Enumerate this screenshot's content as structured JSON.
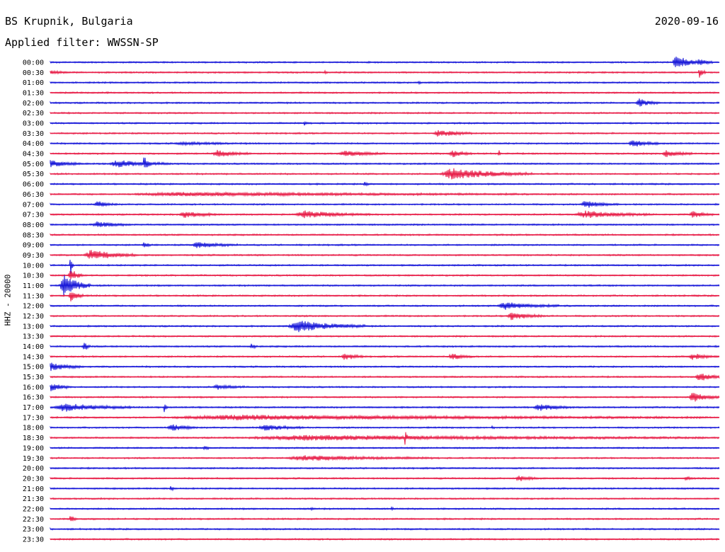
{
  "header": {
    "station": "BS Krupnik, Bulgaria",
    "date": "2020-09-16",
    "filter": "Applied filter: WWSSN-SP"
  },
  "chart_data": {
    "type": "line",
    "title": "BS Krupnik, Bulgaria",
    "subtitle": "Applied filter: WWSSN-SP",
    "ylabel": "HHZ - 20000",
    "trace_colors": [
      "#1a1ad9",
      "#e8204a"
    ],
    "rows": [
      {
        "label": "00:00",
        "events": [
          {
            "t": 0.935,
            "amp": 1.3,
            "dur": 0.035
          },
          {
            "t": 0.97,
            "amp": 0.6,
            "dur": 0.02
          }
        ]
      },
      {
        "label": "00:30",
        "events": [
          {
            "t": 0.0,
            "amp": 0.3,
            "dur": 0.03
          },
          {
            "t": 0.41,
            "amp": 0.4,
            "dur": 0.004
          },
          {
            "t": 0.97,
            "amp": 0.9,
            "dur": 0.01
          }
        ]
      },
      {
        "label": "01:00",
        "events": [
          {
            "t": 0.55,
            "amp": 0.4,
            "dur": 0.004
          }
        ]
      },
      {
        "label": "01:30",
        "events": []
      },
      {
        "label": "02:00",
        "events": [
          {
            "t": 0.88,
            "amp": 0.7,
            "dur": 0.03
          }
        ]
      },
      {
        "label": "02:30",
        "events": []
      },
      {
        "label": "03:00",
        "events": [
          {
            "t": 0.38,
            "amp": 0.3,
            "dur": 0.01
          }
        ]
      },
      {
        "label": "03:30",
        "events": [
          {
            "t": 0.58,
            "amp": 0.6,
            "dur": 0.05
          }
        ]
      },
      {
        "label": "04:00",
        "events": [
          {
            "t": 0.87,
            "amp": 0.6,
            "dur": 0.04
          },
          {
            "t": 0.2,
            "amp": 0.2,
            "dur": 0.1
          }
        ]
      },
      {
        "label": "04:30",
        "events": [
          {
            "t": 0.25,
            "amp": 0.6,
            "dur": 0.05
          },
          {
            "t": 0.44,
            "amp": 0.5,
            "dur": 0.06
          },
          {
            "t": 0.6,
            "amp": 0.6,
            "dur": 0.03
          },
          {
            "t": 0.67,
            "amp": 0.9,
            "dur": 0.004
          },
          {
            "t": 0.92,
            "amp": 0.6,
            "dur": 0.04
          }
        ]
      },
      {
        "label": "05:00",
        "events": [
          {
            "t": 0.0,
            "amp": 0.6,
            "dur": 0.05
          },
          {
            "t": 0.1,
            "amp": 0.6,
            "dur": 0.08
          },
          {
            "t": 0.14,
            "amp": 1.2,
            "dur": 0.01
          }
        ]
      },
      {
        "label": "05:30",
        "events": [
          {
            "t": 0.6,
            "amp": 1.0,
            "dur": 0.12
          }
        ]
      },
      {
        "label": "06:00",
        "events": [
          {
            "t": 0.47,
            "amp": 0.3,
            "dur": 0.01
          }
        ]
      },
      {
        "label": "06:30",
        "events": [
          {
            "t": 0.2,
            "amp": 0.3,
            "dur": 0.5
          }
        ]
      },
      {
        "label": "07:00",
        "events": [
          {
            "t": 0.07,
            "amp": 0.5,
            "dur": 0.03
          },
          {
            "t": 0.8,
            "amp": 0.6,
            "dur": 0.05
          }
        ]
      },
      {
        "label": "07:30",
        "events": [
          {
            "t": 0.2,
            "amp": 0.6,
            "dur": 0.05
          },
          {
            "t": 0.38,
            "amp": 0.6,
            "dur": 0.1
          },
          {
            "t": 0.8,
            "amp": 0.6,
            "dur": 0.1
          },
          {
            "t": 0.96,
            "amp": 0.6,
            "dur": 0.03
          }
        ]
      },
      {
        "label": "08:00",
        "events": [
          {
            "t": 0.07,
            "amp": 0.5,
            "dur": 0.05
          }
        ]
      },
      {
        "label": "08:30",
        "events": []
      },
      {
        "label": "09:00",
        "events": [
          {
            "t": 0.14,
            "amp": 0.7,
            "dur": 0.01
          },
          {
            "t": 0.22,
            "amp": 0.5,
            "dur": 0.06
          }
        ]
      },
      {
        "label": "09:30",
        "events": [
          {
            "t": 0.06,
            "amp": 0.9,
            "dur": 0.07
          }
        ]
      },
      {
        "label": "10:00",
        "events": [
          {
            "t": 0.03,
            "amp": 2.0,
            "dur": 0.005
          }
        ]
      },
      {
        "label": "10:30",
        "events": [
          {
            "t": 0.03,
            "amp": 1.2,
            "dur": 0.02
          }
        ]
      },
      {
        "label": "11:00",
        "events": [
          {
            "t": 0.02,
            "amp": 2.0,
            "dur": 0.04
          }
        ]
      },
      {
        "label": "11:30",
        "events": [
          {
            "t": 0.03,
            "amp": 1.0,
            "dur": 0.02
          }
        ]
      },
      {
        "label": "12:00",
        "events": [
          {
            "t": 0.68,
            "amp": 0.6,
            "dur": 0.08
          }
        ]
      },
      {
        "label": "12:30",
        "events": [
          {
            "t": 0.69,
            "amp": 0.7,
            "dur": 0.05
          }
        ]
      },
      {
        "label": "13:00",
        "events": [
          {
            "t": 0.37,
            "amp": 1.0,
            "dur": 0.1
          }
        ]
      },
      {
        "label": "13:30",
        "events": []
      },
      {
        "label": "14:00",
        "events": [
          {
            "t": 0.05,
            "amp": 1.0,
            "dur": 0.01
          },
          {
            "t": 0.3,
            "amp": 0.5,
            "dur": 0.01
          }
        ]
      },
      {
        "label": "14:30",
        "events": [
          {
            "t": 0.44,
            "amp": 0.6,
            "dur": 0.03
          },
          {
            "t": 0.6,
            "amp": 0.6,
            "dur": 0.03
          },
          {
            "t": 0.96,
            "amp": 0.5,
            "dur": 0.04
          }
        ]
      },
      {
        "label": "15:00",
        "events": [
          {
            "t": 0.0,
            "amp": 0.7,
            "dur": 0.05
          }
        ]
      },
      {
        "label": "15:30",
        "events": [
          {
            "t": 0.97,
            "amp": 0.7,
            "dur": 0.04
          }
        ]
      },
      {
        "label": "16:00",
        "events": [
          {
            "t": 0.0,
            "amp": 0.7,
            "dur": 0.03
          },
          {
            "t": 0.25,
            "amp": 0.4,
            "dur": 0.04
          }
        ]
      },
      {
        "label": "16:30",
        "events": [
          {
            "t": 0.96,
            "amp": 0.9,
            "dur": 0.04
          }
        ]
      },
      {
        "label": "17:00",
        "events": [
          {
            "t": 0.02,
            "amp": 0.7,
            "dur": 0.1
          },
          {
            "t": 0.17,
            "amp": 0.9,
            "dur": 0.005
          },
          {
            "t": 0.73,
            "amp": 0.6,
            "dur": 0.05
          }
        ]
      },
      {
        "label": "17:30",
        "events": [
          {
            "t": 0.28,
            "amp": 0.4,
            "dur": 0.7
          }
        ]
      },
      {
        "label": "18:00",
        "events": [
          {
            "t": 0.18,
            "amp": 0.6,
            "dur": 0.04
          },
          {
            "t": 0.32,
            "amp": 0.5,
            "dur": 0.06
          },
          {
            "t": 0.66,
            "amp": 0.5,
            "dur": 0.004
          }
        ]
      },
      {
        "label": "18:30",
        "events": [
          {
            "t": 0.38,
            "amp": 0.4,
            "dur": 0.6
          },
          {
            "t": 0.53,
            "amp": 1.3,
            "dur": 0.004
          }
        ]
      },
      {
        "label": "19:00",
        "events": [
          {
            "t": 0.23,
            "amp": 0.4,
            "dur": 0.01
          }
        ]
      },
      {
        "label": "19:30",
        "events": [
          {
            "t": 0.38,
            "amp": 0.4,
            "dur": 0.2
          }
        ]
      },
      {
        "label": "20:00",
        "events": []
      },
      {
        "label": "20:30",
        "events": [
          {
            "t": 0.7,
            "amp": 0.5,
            "dur": 0.03
          },
          {
            "t": 0.95,
            "amp": 0.4,
            "dur": 0.01
          }
        ]
      },
      {
        "label": "21:00",
        "events": [
          {
            "t": 0.18,
            "amp": 0.4,
            "dur": 0.01
          }
        ]
      },
      {
        "label": "21:30",
        "events": []
      },
      {
        "label": "22:00",
        "events": [
          {
            "t": 0.39,
            "amp": 0.4,
            "dur": 0.005
          },
          {
            "t": 0.51,
            "amp": 0.3,
            "dur": 0.005
          }
        ]
      },
      {
        "label": "22:30",
        "events": [
          {
            "t": 0.03,
            "amp": 0.8,
            "dur": 0.01
          }
        ]
      },
      {
        "label": "23:00",
        "events": []
      },
      {
        "label": "23:30",
        "events": []
      }
    ]
  }
}
